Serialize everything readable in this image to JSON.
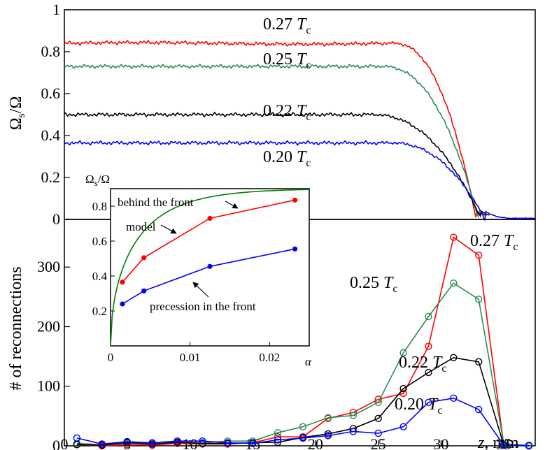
{
  "chart_data": [
    {
      "type": "line",
      "panel": "top",
      "ylabel": "Ωs/Ω",
      "xlim": [
        0,
        37.5
      ],
      "ylim": [
        0,
        1
      ],
      "y_ticks": [
        "0",
        "0.2",
        "0.4",
        "0.6",
        "0.8",
        "1"
      ],
      "series": [
        {
          "name": "0.27 Tc",
          "color": "#ff0000",
          "plateau": 0.84,
          "drop_start": 26,
          "drop_end": 32.8,
          "end": 33.5
        },
        {
          "name": "0.25 Tc",
          "color": "#2e8b57",
          "plateau": 0.73,
          "drop_start": 25,
          "drop_end": 33,
          "end": 33.7
        },
        {
          "name": "0.22 Tc",
          "color": "#000000",
          "plateau": 0.5,
          "drop_start": 24,
          "drop_end": 33.2,
          "end": 33.9
        },
        {
          "name": "0.20 Tc",
          "color": "#0000ff",
          "plateau": 0.365,
          "drop_start": 25.5,
          "drop_end": 33.5,
          "end": 37.5
        }
      ],
      "labels": [
        {
          "text": "0.27",
          "sub": "c",
          "series": 0
        },
        {
          "text": "0.25",
          "sub": "c",
          "series": 1
        },
        {
          "text": "0.22",
          "sub": "c",
          "series": 2
        },
        {
          "text": "0.20",
          "sub": "c",
          "series": 3
        }
      ]
    },
    {
      "type": "line",
      "panel": "bottom",
      "ylabel": "# of reconnections",
      "xlabel": "z, mm",
      "xlim": [
        0,
        37.5
      ],
      "ylim": [
        0,
        380
      ],
      "x_ticks": [
        "0",
        "5",
        "10",
        "15",
        "20",
        "25",
        "30",
        "35"
      ],
      "y_ticks": [
        "0",
        "100",
        "200",
        "300"
      ],
      "x": [
        1,
        3,
        5,
        7,
        9,
        11,
        13,
        15,
        17,
        19,
        21,
        23,
        25,
        27,
        29,
        31,
        33,
        35,
        37,
        39
      ],
      "series": [
        {
          "name": "0.27 Tc",
          "color": "#ff0000",
          "values": [
            2,
            0,
            2,
            1,
            4,
            3,
            3,
            5,
            15,
            15,
            46,
            56,
            78,
            88,
            167,
            350,
            320,
            1,
            0,
            1
          ]
        },
        {
          "name": "0.25 Tc",
          "color": "#2e8b57",
          "values": [
            4,
            2,
            6,
            3,
            6,
            5,
            8,
            8,
            22,
            32,
            47,
            51,
            73,
            156,
            217,
            273,
            246,
            3,
            1,
            3
          ]
        },
        {
          "name": "0.22 Tc",
          "color": "#000000",
          "values": [
            2,
            1,
            5,
            3,
            6,
            4,
            4,
            5,
            6,
            14,
            20,
            29,
            46,
            96,
            123,
            148,
            141,
            1,
            0,
            4
          ]
        },
        {
          "name": "0.20 Tc",
          "color": "#0000ff",
          "values": [
            13,
            3,
            7,
            5,
            8,
            8,
            5,
            4,
            10,
            13,
            17,
            24,
            21,
            32,
            73,
            80,
            61,
            1,
            0,
            3
          ]
        }
      ],
      "labels": [
        {
          "text": "0.27",
          "sub": "c",
          "series": 0
        },
        {
          "text": "0.25",
          "sub": "c",
          "series": 1
        },
        {
          "text": "0.22",
          "sub": "c",
          "series": 2
        },
        {
          "text": "0.20",
          "sub": "c",
          "series": 3
        }
      ]
    },
    {
      "type": "line",
      "panel": "inset",
      "title": "Ωs/Ω",
      "xlabel": "α",
      "xlim": [
        0,
        0.025
      ],
      "ylim": [
        0,
        0.9
      ],
      "x_ticks": [
        "0",
        "0.01",
        "0.02"
      ],
      "y_ticks": [
        "0.2",
        "0.4",
        "0.6",
        "0.8"
      ],
      "series": [
        {
          "name": "behind the front",
          "color": "#ff0000",
          "x": [
            0.0015,
            0.0042,
            0.0125,
            0.0232
          ],
          "values": [
            0.365,
            0.505,
            0.73,
            0.835
          ]
        },
        {
          "name": "precession in the front",
          "color": "#0000ff",
          "x": [
            0.0015,
            0.0042,
            0.0125,
            0.0232
          ],
          "values": [
            0.24,
            0.315,
            0.455,
            0.555
          ]
        },
        {
          "name": "model",
          "color": "#008000"
        }
      ],
      "annotations": [
        "behind the front",
        "model",
        "precession in the front"
      ]
    }
  ]
}
